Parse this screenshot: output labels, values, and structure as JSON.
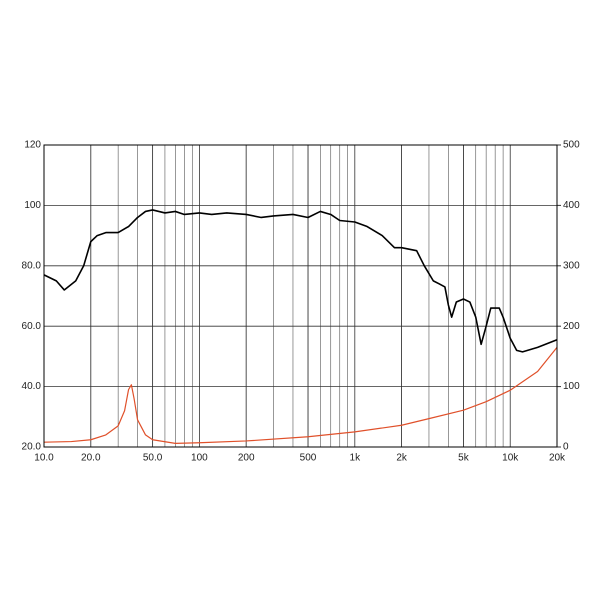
{
  "chart_data": {
    "type": "line",
    "xscale": "log",
    "xlim": [
      10,
      20000
    ],
    "xticks": [
      {
        "value": 10,
        "label": "10.0"
      },
      {
        "value": 20,
        "label": "20.0"
      },
      {
        "value": 50,
        "label": "50.0"
      },
      100,
      200,
      500,
      {
        "value": 1000,
        "label": "1k"
      },
      {
        "value": 2000,
        "label": "2k"
      },
      {
        "value": 5000,
        "label": "5k"
      },
      {
        "value": 10000,
        "label": "10k"
      },
      {
        "value": 20000,
        "label": "20k"
      }
    ],
    "ylim": [
      20,
      120
    ],
    "yticks": [
      {
        "value": 20,
        "label": "20.0"
      },
      {
        "value": 40,
        "label": "40.0"
      },
      {
        "value": 60,
        "label": "60.0"
      },
      {
        "value": 80,
        "label": "80.0"
      },
      100,
      120
    ],
    "y2lim": [
      0,
      500
    ],
    "y2ticks": [
      0,
      100,
      200,
      300,
      400,
      500
    ],
    "grid": true,
    "series": [
      {
        "color": "#000000",
        "axis": "y",
        "x": [
          10,
          12,
          13.5,
          16,
          18,
          20,
          22,
          25,
          30,
          35,
          40,
          45,
          50,
          60,
          70,
          80,
          100,
          120,
          150,
          200,
          250,
          300,
          400,
          500,
          600,
          700,
          800,
          1000,
          1200,
          1500,
          1800,
          2000,
          2500,
          2800,
          3200,
          3500,
          3800,
          4000,
          4200,
          4500,
          5000,
          5500,
          6000,
          6500,
          7000,
          7500,
          8500,
          9000,
          10000,
          11000,
          12000,
          15000,
          20000
        ],
        "values": [
          77,
          75,
          72,
          75,
          80,
          88,
          90,
          91,
          91,
          93,
          96,
          98,
          98.5,
          97.5,
          98,
          97,
          97.5,
          97,
          97.5,
          97,
          96,
          96.5,
          97,
          96,
          98,
          97,
          95,
          94.5,
          93,
          90,
          86,
          86,
          85,
          80,
          75,
          74,
          73,
          67,
          63,
          68,
          69,
          68,
          63,
          54,
          60,
          66,
          66,
          63,
          56,
          52,
          51.5,
          53,
          55.5
        ]
      },
      {
        "color": "#e0502a",
        "axis": "y2",
        "x": [
          10,
          15,
          20,
          25,
          30,
          33,
          35,
          36.5,
          38,
          40,
          45,
          50,
          70,
          100,
          200,
          500,
          1000,
          2000,
          3000,
          5000,
          7000,
          10000,
          15000,
          20000
        ],
        "values": [
          8,
          9,
          12,
          20,
          35,
          60,
          95,
          103,
          80,
          45,
          20,
          12,
          6,
          7,
          10,
          17,
          25,
          36,
          47,
          61,
          75,
          94,
          125,
          165
        ]
      }
    ]
  }
}
